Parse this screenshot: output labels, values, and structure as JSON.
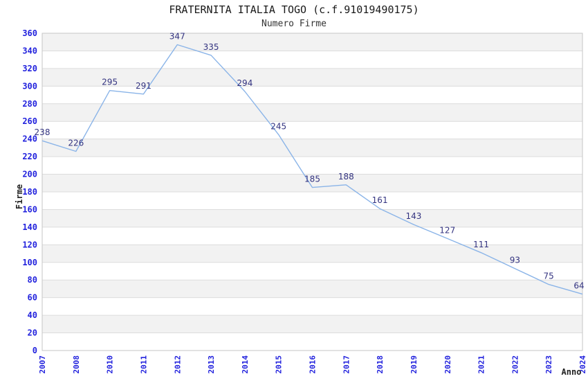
{
  "header": {
    "title": "FRATERNITA ITALIA TOGO (c.f.91019490175)",
    "subtitle": "Numero Firme"
  },
  "chart_data": {
    "type": "line",
    "title": "FRATERNITA ITALIA TOGO (c.f.91019490175)",
    "subtitle": "Numero Firme",
    "xlabel": "Anno",
    "ylabel": "Firme",
    "categories": [
      "2007",
      "2008",
      "2010",
      "2011",
      "2012",
      "2013",
      "2014",
      "2015",
      "2016",
      "2017",
      "2018",
      "2019",
      "2020",
      "2021",
      "2022",
      "2023",
      "2024"
    ],
    "values": [
      238,
      226,
      295,
      291,
      347,
      335,
      294,
      245,
      185,
      188,
      161,
      143,
      127,
      111,
      93,
      75,
      64
    ],
    "ylim": [
      0,
      360
    ],
    "ytick_step": 20,
    "grid": true,
    "banded_background": true,
    "legend_position": "none",
    "colors": {
      "line": "#8ab4e8",
      "point_label": "#333380",
      "tick_label": "#2222dd",
      "band": "#f2f2f2",
      "gridline": "#dcdcdc",
      "plot_border": "#c6c6c6",
      "background": "#ffffff",
      "axis_title": "#222222"
    }
  }
}
